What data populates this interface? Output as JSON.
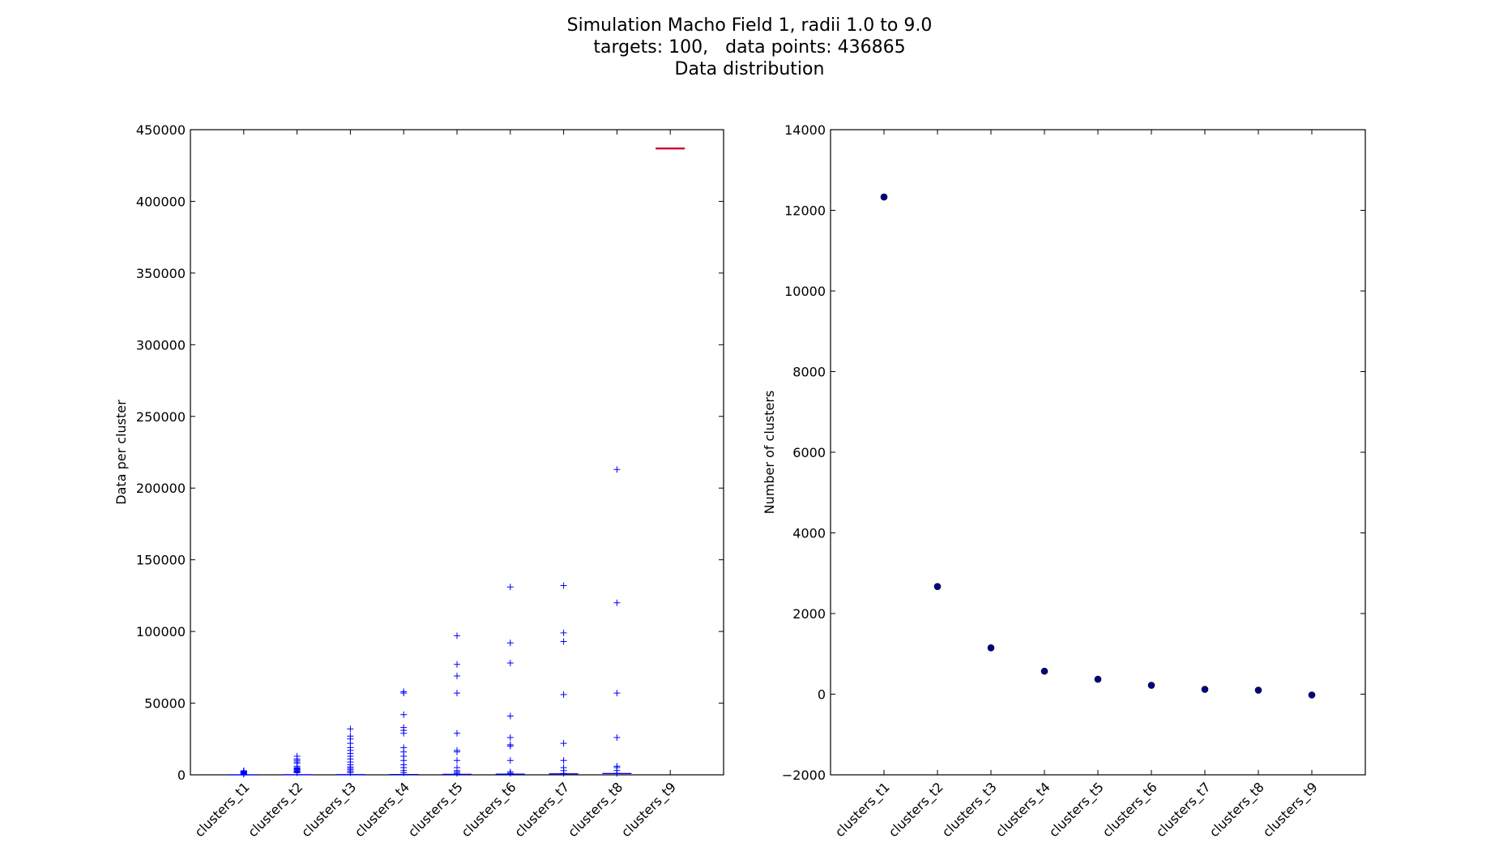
{
  "title": {
    "line1": "Simulation Macho Field 1, radii 1.0 to 9.0",
    "line2": "targets: 100,   data points: 436865",
    "line3": "Data distribution"
  },
  "colors": {
    "box": "#0000ff",
    "median": "#cc0033",
    "scatter": "#00008b",
    "axis": "#000000"
  },
  "chart_data": [
    {
      "type": "box",
      "ylabel": "Data per cluster",
      "xlabel": "",
      "categories": [
        "clusters_t1",
        "clusters_t2",
        "clusters_t3",
        "clusters_t4",
        "clusters_t5",
        "clusters_t6",
        "clusters_t7",
        "clusters_t8",
        "clusters_t9"
      ],
      "ylim": [
        0,
        450000
      ],
      "yticks": [
        0,
        50000,
        100000,
        150000,
        200000,
        250000,
        300000,
        350000,
        400000,
        450000
      ],
      "median": [
        20,
        60,
        140,
        250,
        350,
        500,
        700,
        900,
        436865
      ],
      "outliers": [
        [
          500,
          800,
          1200,
          1500,
          1800,
          2100,
          2400,
          2800
        ],
        [
          1500,
          2000,
          2500,
          3000,
          3500,
          4000,
          4500,
          5000,
          6000,
          8000,
          9000,
          10000,
          11000,
          13000
        ],
        [
          1500,
          2500,
          3500,
          4500,
          5500,
          7000,
          9000,
          11000,
          13000,
          15000,
          17000,
          19000,
          22000,
          25000,
          27000,
          32000
        ],
        [
          1500,
          3000,
          5000,
          7000,
          10000,
          13000,
          16000,
          19000,
          29000,
          31000,
          33000,
          42000,
          57000,
          58000
        ],
        [
          1000,
          2000,
          3000,
          5000,
          10000,
          16000,
          17000,
          29000,
          57000,
          69000,
          77000,
          97000
        ],
        [
          1000,
          2000,
          10000,
          20000,
          21000,
          26000,
          41000,
          78000,
          92000,
          131000
        ],
        [
          1000,
          3000,
          5000,
          10000,
          22000,
          56000,
          93000,
          99000,
          132000
        ],
        [
          1000,
          3000,
          5000,
          6000,
          26000,
          57000,
          120000,
          213000
        ],
        []
      ]
    },
    {
      "type": "scatter",
      "ylabel": "Number of clusters",
      "xlabel": "",
      "categories": [
        "clusters_t1",
        "clusters_t2",
        "clusters_t3",
        "clusters_t4",
        "clusters_t5",
        "clusters_t6",
        "clusters_t7",
        "clusters_t8",
        "clusters_t9"
      ],
      "ylim": [
        -2000,
        14000
      ],
      "yticks": [
        -2000,
        0,
        2000,
        4000,
        6000,
        8000,
        10000,
        12000,
        14000
      ],
      "values": [
        12330,
        2670,
        1150,
        570,
        370,
        220,
        120,
        100,
        -20
      ]
    }
  ]
}
